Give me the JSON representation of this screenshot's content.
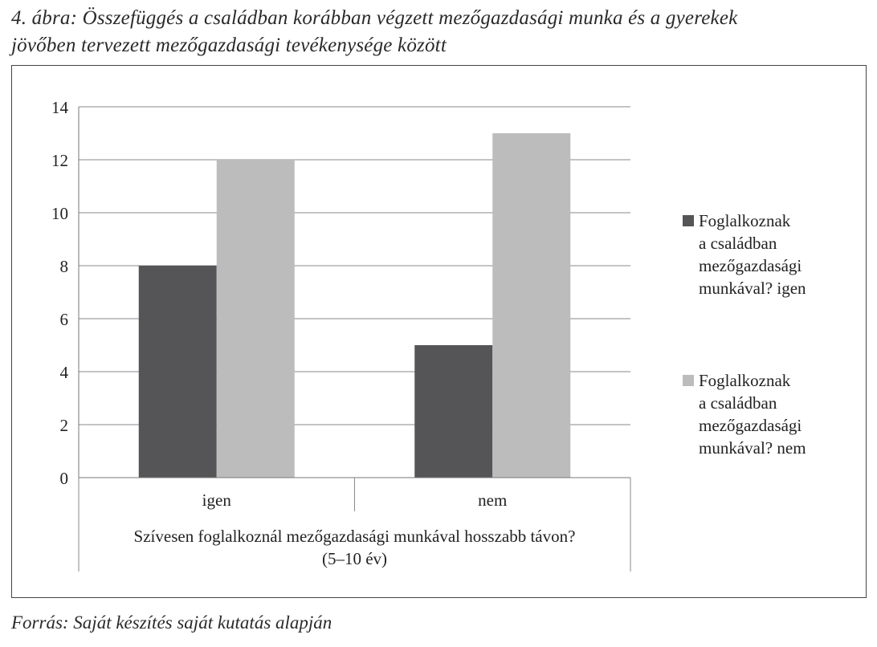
{
  "figure": {
    "caption_line1": "4. ábra: Összefüggés a családban korábban végzett mezőgazdasági munka és a gyerekek",
    "caption_line2": "jövőben tervezett mezőgazdasági tevékenysége között",
    "source": "Forrás: Saját készítés saját kutatás alapján"
  },
  "chart_data": {
    "type": "bar",
    "title": "",
    "categories": [
      "igen",
      "nem"
    ],
    "xlabel_lines": [
      "Szívesen foglalkoznál mezőgazdasági munkával hosszabb távon?",
      "(5–10 év)"
    ],
    "ylabel": "",
    "ylim": [
      0,
      14
    ],
    "yticks": [
      0,
      2,
      4,
      6,
      8,
      10,
      12,
      14
    ],
    "grid": true,
    "legend_position": "right",
    "series": [
      {
        "name": "Foglalkoznak a családban mezőgazdasági munkával? igen",
        "name_lines": [
          "Foglalkoznak",
          "a családban",
          "mezőgazdasági",
          "munkával? igen"
        ],
        "color": "#555557",
        "values": [
          8,
          5
        ]
      },
      {
        "name": "Foglalkoznak a családban mezőgazdasági munkával? nem",
        "name_lines": [
          "Foglalkoznak",
          "a családban",
          "mezőgazdasági",
          "munkával? nem"
        ],
        "color": "#bcbcbc",
        "values": [
          12,
          13
        ]
      }
    ]
  }
}
